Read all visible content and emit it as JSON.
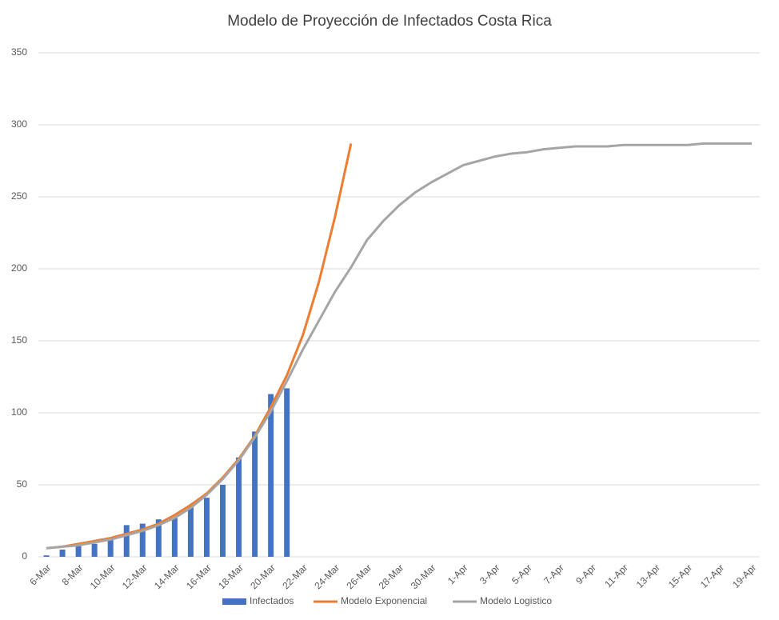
{
  "chart_data": {
    "type": "combo",
    "title": "Modelo de Proyección de Infectados Costa Rica",
    "categories": [
      "6-Mar",
      null,
      "8-Mar",
      null,
      "10-Mar",
      null,
      "12-Mar",
      null,
      "14-Mar",
      null,
      "16-Mar",
      null,
      "18-Mar",
      null,
      "20-Mar",
      null,
      "22-Mar",
      null,
      "24-Mar",
      null,
      "26-Mar",
      null,
      "28-Mar",
      null,
      "30-Mar",
      null,
      "1-Apr",
      null,
      "3-Apr",
      null,
      "5-Apr",
      null,
      "7-Apr",
      null,
      "9-Apr",
      null,
      "11-Apr",
      null,
      "13-Apr",
      null,
      "15-Apr",
      null,
      "17-Apr",
      null,
      "19-Apr"
    ],
    "series": [
      {
        "name": "Infectados",
        "type": "bar",
        "color": "#4472c4",
        "values": [
          1,
          5,
          9,
          9,
          13,
          22,
          23,
          26,
          27,
          35,
          41,
          50,
          69,
          87,
          113,
          117,
          null,
          null,
          null,
          null,
          null,
          null,
          null,
          null,
          null,
          null,
          null,
          null,
          null,
          null,
          null,
          null,
          null,
          null,
          null,
          null,
          null,
          null,
          null,
          null,
          null,
          null,
          null,
          null,
          null
        ]
      },
      {
        "name": "Modelo Exponencial",
        "type": "line",
        "color": "#ed7d31",
        "values": [
          6,
          7,
          9,
          11,
          13,
          16,
          19,
          23,
          29,
          36,
          44,
          55,
          68,
          84,
          104,
          126,
          154,
          191,
          236,
          287,
          null,
          null,
          null,
          null,
          null,
          null,
          null,
          null,
          null,
          null,
          null,
          null,
          null,
          null,
          null,
          null,
          null,
          null,
          null,
          null,
          null,
          null,
          null,
          null,
          null
        ]
      },
      {
        "name": "Modelo Logistico",
        "type": "line",
        "color": "#a5a5a5",
        "values": [
          6,
          7,
          8,
          10,
          12,
          15,
          18,
          22,
          27,
          34,
          43,
          54,
          67,
          83,
          101,
          122,
          144,
          164,
          184,
          201,
          220,
          233,
          244,
          253,
          260,
          266,
          272,
          275,
          278,
          280,
          281,
          283,
          284,
          285,
          285,
          285,
          286,
          286,
          286,
          286,
          286,
          287,
          287,
          287,
          287
        ]
      }
    ],
    "ylim": [
      0,
      350
    ],
    "yticks": [
      0,
      50,
      100,
      150,
      200,
      250,
      300,
      350
    ],
    "grid": true,
    "legend": "bottom"
  }
}
